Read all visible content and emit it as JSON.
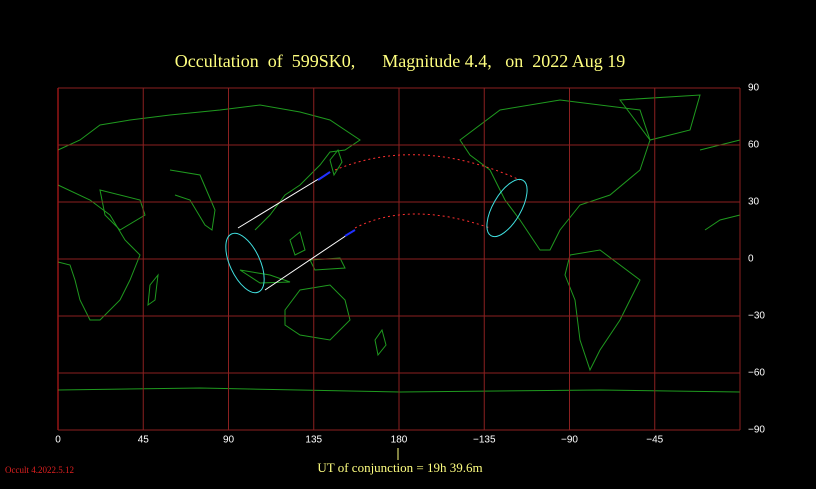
{
  "title": "Occultation  of  599SK0,      Magnitude 4.4,   on  2022 Aug 19",
  "map": {
    "xlim": [
      0,
      360
    ],
    "ylim": [
      -90,
      90
    ],
    "xticks": [
      0,
      45,
      90,
      135,
      180,
      {
        "value": 225,
        "label": "−135"
      },
      {
        "value": 270,
        "label": "−90"
      },
      {
        "value": 315,
        "label": "−45"
      }
    ],
    "yticks": [
      90,
      60,
      30,
      0,
      {
        "value": -30,
        "label": "−30"
      },
      {
        "value": -60,
        "label": "−60"
      },
      {
        "value": -90,
        "label": "−90"
      }
    ]
  },
  "footer": "UT of conjunction = 19h 39.6m",
  "version": "Occult 4.2022.5.12"
}
